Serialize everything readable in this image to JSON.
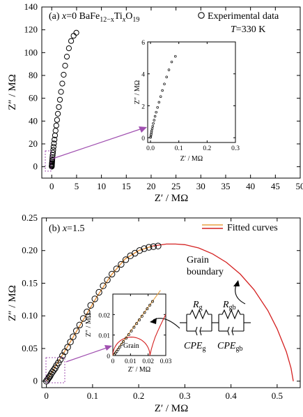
{
  "colors": {
    "marker": "#000000",
    "fitted_near": "#e8a040",
    "fitted_far": "#d42020",
    "arrow": "#a050b0",
    "zoom_box": "#a050b0"
  },
  "chart_data": [
    {
      "type": "scatter",
      "panel": "(a)",
      "title_parts": {
        "label": "(a)",
        "var": "x",
        "value": "=0",
        "formula": "BaFe",
        "formula_sub1": "12−x",
        "formula_mid": "Ti",
        "formula_sub2": "x",
        "formula_end": "O",
        "formula_sub3": "19"
      },
      "legend": "Experimental data",
      "temperature": {
        "var": "T",
        "value": "=330 K"
      },
      "xlabel": "Z′ / MΩ",
      "ylabel": "Z″ / MΩ",
      "xlim": [
        -2,
        50
      ],
      "ylim": [
        -10,
        140
      ],
      "xticks": [
        "0",
        "5",
        "10",
        "15",
        "20",
        "25",
        "30",
        "35",
        "40",
        "45",
        "50"
      ],
      "yticks": [
        "0",
        "20",
        "40",
        "60",
        "80",
        "100",
        "120",
        "140"
      ],
      "series": [
        {
          "marker": "open-circle",
          "x": [
            0.0,
            0.01,
            0.02,
            0.03,
            0.04,
            0.05,
            0.07,
            0.09,
            0.12,
            0.15,
            0.19,
            0.24,
            0.3,
            0.37,
            0.45,
            0.55,
            0.66,
            0.78,
            0.92,
            1.07,
            1.24,
            1.43,
            1.64,
            1.87,
            2.12,
            2.4,
            2.7,
            3.05,
            3.45,
            3.9,
            4.4,
            4.95
          ],
          "y": [
            0.1,
            0.5,
            1.0,
            1.6,
            2.3,
            3.1,
            4.1,
            5.3,
            6.7,
            8.3,
            10.2,
            12.3,
            14.7,
            17.4,
            20.4,
            23.8,
            27.5,
            31.6,
            36.1,
            41.0,
            46.4,
            52.3,
            58.7,
            65.6,
            72.9,
            80.6,
            88.6,
            96.5,
            103.8,
            110.2,
            114.8,
            117.4
          ]
        }
      ],
      "inset": {
        "xlabel": "Z′ / MΩ",
        "ylabel": "Z″ / MΩ",
        "xlim": [
          -0.01,
          0.3
        ],
        "ylim": [
          -0.3,
          6
        ],
        "xticks": [
          "0.0",
          "0.1",
          "0.2",
          "0.3"
        ],
        "yticks": [
          "0",
          "2",
          "4",
          "6"
        ],
        "x": [
          0.0,
          0.001,
          0.002,
          0.003,
          0.004,
          0.006,
          0.008,
          0.01,
          0.013,
          0.016,
          0.02,
          0.025,
          0.03,
          0.036,
          0.042,
          0.049,
          0.057,
          0.065,
          0.075,
          0.088
        ],
        "y": [
          0.02,
          0.1,
          0.2,
          0.3,
          0.42,
          0.56,
          0.72,
          0.9,
          1.1,
          1.34,
          1.6,
          1.9,
          2.22,
          2.58,
          2.96,
          3.36,
          3.8,
          4.25,
          4.75,
          5.1
        ]
      }
    },
    {
      "type": "scatter",
      "panel": "(b)",
      "title_parts": {
        "label": "(b)",
        "var": "x",
        "value": "=1.5"
      },
      "legend": "Fitted curves",
      "xlabel": "Z′ / MΩ",
      "ylabel": "Z″ / MΩ",
      "xlim": [
        -0.01,
        0.55
      ],
      "ylim": [
        -0.01,
        0.25
      ],
      "xticks": [
        "0",
        "0.1",
        "0.2",
        "0.3",
        "0.4",
        "0.5"
      ],
      "yticks": [
        "0",
        "0.05",
        "0.10",
        "0.15",
        "0.20",
        "0.25"
      ],
      "experimental": {
        "x": [
          0.0,
          0.002,
          0.004,
          0.006,
          0.008,
          0.01,
          0.013,
          0.016,
          0.019,
          0.022,
          0.026,
          0.03,
          0.035,
          0.04,
          0.046,
          0.052,
          0.058,
          0.065,
          0.072,
          0.08,
          0.088,
          0.096,
          0.105,
          0.114,
          0.123,
          0.132,
          0.142,
          0.152,
          0.162,
          0.172,
          0.182,
          0.192,
          0.202,
          0.212,
          0.222,
          0.232,
          0.242
        ],
        "y": [
          0.0,
          0.002,
          0.004,
          0.006,
          0.008,
          0.011,
          0.014,
          0.017,
          0.02,
          0.024,
          0.028,
          0.033,
          0.039,
          0.045,
          0.052,
          0.06,
          0.068,
          0.077,
          0.086,
          0.096,
          0.106,
          0.116,
          0.126,
          0.136,
          0.146,
          0.155,
          0.164,
          0.172,
          0.179,
          0.186,
          0.192,
          0.196,
          0.2,
          0.203,
          0.205,
          0.206,
          0.207
        ]
      },
      "fit": {
        "x": [
          0.0,
          0.02,
          0.05,
          0.08,
          0.11,
          0.14,
          0.17,
          0.2,
          0.23,
          0.26,
          0.28,
          0.3,
          0.33,
          0.36,
          0.39,
          0.42,
          0.45,
          0.48,
          0.5,
          0.52,
          0.53,
          0.535
        ],
        "y": [
          0.0,
          0.023,
          0.058,
          0.094,
          0.13,
          0.162,
          0.187,
          0.2,
          0.207,
          0.21,
          0.21,
          0.209,
          0.204,
          0.195,
          0.182,
          0.164,
          0.14,
          0.108,
          0.08,
          0.045,
          0.02,
          0.0
        ]
      },
      "annotations": [
        "Grain",
        "boundary"
      ],
      "circuit": {
        "r1": "R",
        "r1_sub": "g",
        "r2": "R",
        "r2_sub": "gb",
        "c1": "CPE",
        "c1_sub": "g",
        "c2": "CPE",
        "c2_sub": "gb"
      },
      "inset": {
        "xlabel": "Z′ / MΩ",
        "ylabel": "Z″ / MΩ",
        "xlim": [
          0,
          0.03
        ],
        "ylim": [
          0,
          0.03
        ],
        "xticks": [
          "0",
          "0.01",
          "0.02",
          "0.03"
        ],
        "yticks": [
          "0",
          "0.01",
          "0.02"
        ],
        "grain_label": "Grain",
        "x": [
          0.0008,
          0.0015,
          0.0022,
          0.003,
          0.004,
          0.005,
          0.006,
          0.0075,
          0.009,
          0.0105,
          0.012,
          0.0135,
          0.015,
          0.0165,
          0.018,
          0.0195,
          0.021,
          0.0225
        ],
        "y": [
          0.0005,
          0.0012,
          0.002,
          0.003,
          0.0042,
          0.0055,
          0.0068,
          0.0085,
          0.0102,
          0.012,
          0.0138,
          0.0156,
          0.0174,
          0.0192,
          0.021,
          0.0228,
          0.0246,
          0.0264
        ]
      }
    }
  ]
}
